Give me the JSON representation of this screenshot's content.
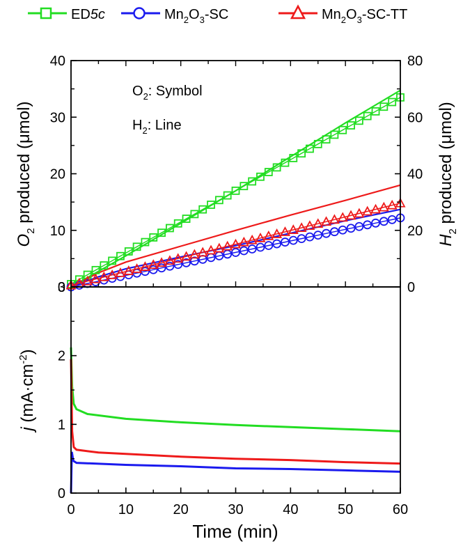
{
  "chart_data": [
    {
      "type": "scatter",
      "panel": "top",
      "legend": {
        "placement": "top",
        "entries": [
          {
            "label": "ED",
            "label_italic": "5c",
            "color": "#22dd22",
            "marker": "square"
          },
          {
            "label": "Mn",
            "sub1": "2",
            "mid": "O",
            "sub2": "3",
            "tail": "-SC",
            "color": "#1a1aee",
            "marker": "circle"
          },
          {
            "label": "Mn",
            "sub1": "2",
            "mid": "O",
            "sub2": "3",
            "tail": "-SC-TT",
            "color": "#ee1a1a",
            "marker": "triangle"
          }
        ]
      },
      "annotations": {
        "o2_main": "O",
        "o2_sub": "2",
        "o2_rest": ": Symbol",
        "h2_main": "H",
        "h2_sub": "2",
        "h2_rest": ": Line"
      },
      "ylabel_left": {
        "italic": "O",
        "sub": "2",
        "rest": " produced (μmol)"
      },
      "ylabel_right": {
        "italic": "H",
        "sub": "2",
        "rest": " produced (μmol)"
      },
      "xlim": [
        0,
        60
      ],
      "ylim_left": [
        0,
        40
      ],
      "ylim_right": [
        0,
        80
      ],
      "yticks_left": [
        "0",
        "10",
        "20",
        "30",
        "40"
      ],
      "yticks_right": [
        "0",
        "20",
        "40",
        "60",
        "80"
      ],
      "series_o2_symbols": [
        {
          "color": "#22dd22",
          "marker": "square",
          "x_start": 0,
          "x_end": 60,
          "x_step": 1.5,
          "y_at_0": 0.5,
          "y_at_60": 33.5,
          "shape": "linear"
        },
        {
          "color": "#1a1aee",
          "marker": "circle",
          "x_start": 0,
          "x_end": 60,
          "x_step": 1.5,
          "y_at_0": 0.0,
          "y_at_60": 12.2,
          "shape": "linear"
        },
        {
          "color": "#ee1a1a",
          "marker": "triangle",
          "x_start": 0,
          "x_end": 60,
          "x_step": 1.5,
          "y_at_0": 0.3,
          "y_at_60": 14.8,
          "shape": "linear"
        }
      ],
      "series_h2_lines": [
        {
          "color": "#22dd22",
          "axis": "right",
          "points": [
            [
              0,
              0
            ],
            [
              10,
              11
            ],
            [
              20,
              22.5
            ],
            [
              30,
              34
            ],
            [
              40,
              46
            ],
            [
              50,
              58
            ],
            [
              60,
              69.5
            ]
          ]
        },
        {
          "color": "#1a1aee",
          "axis": "right",
          "points": [
            [
              0,
              0
            ],
            [
              5,
              3.6
            ],
            [
              10,
              6.4
            ],
            [
              20,
              10.6
            ],
            [
              30,
              14.6
            ],
            [
              40,
              19
            ],
            [
              50,
              23.4
            ],
            [
              60,
              27.4
            ]
          ]
        },
        {
          "color": "#ee1a1a",
          "axis": "right",
          "points": [
            [
              0,
              0
            ],
            [
              5,
              5
            ],
            [
              10,
              8.8
            ],
            [
              20,
              14.4
            ],
            [
              30,
              20
            ],
            [
              40,
              25.4
            ],
            [
              50,
              30.6
            ],
            [
              60,
              36
            ]
          ]
        }
      ]
    },
    {
      "type": "line",
      "panel": "bottom",
      "ylabel": {
        "italic": "j",
        "rest": " (mA·cm",
        "sup": "-2",
        "close": ")"
      },
      "xlabel": "Time (min)",
      "xlim": [
        0,
        60
      ],
      "ylim": [
        0,
        3
      ],
      "xticks": [
        "0",
        "10",
        "20",
        "30",
        "40",
        "50",
        "60"
      ],
      "yticks": [
        "0",
        "1",
        "2",
        "3"
      ],
      "series": [
        {
          "color": "#22dd22",
          "points": [
            [
              0,
              2.12
            ],
            [
              0.2,
              1.55
            ],
            [
              0.5,
              1.3
            ],
            [
              1,
              1.22
            ],
            [
              3,
              1.15
            ],
            [
              10,
              1.08
            ],
            [
              20,
              1.03
            ],
            [
              30,
              0.99
            ],
            [
              40,
              0.96
            ],
            [
              50,
              0.93
            ],
            [
              60,
              0.9
            ]
          ]
        },
        {
          "color": "#ee1a1a",
          "points": [
            [
              0,
              1.95
            ],
            [
              0.2,
              0.9
            ],
            [
              0.5,
              0.67
            ],
            [
              1,
              0.63
            ],
            [
              5,
              0.59
            ],
            [
              10,
              0.57
            ],
            [
              20,
              0.53
            ],
            [
              30,
              0.5
            ],
            [
              40,
              0.48
            ],
            [
              50,
              0.45
            ],
            [
              60,
              0.43
            ]
          ]
        },
        {
          "color": "#1a1aee",
          "points": [
            [
              0,
              0.0
            ],
            [
              0.15,
              0.6
            ],
            [
              0.4,
              0.47
            ],
            [
              1,
              0.44
            ],
            [
              10,
              0.41
            ],
            [
              20,
              0.39
            ],
            [
              30,
              0.36
            ],
            [
              40,
              0.35
            ],
            [
              50,
              0.33
            ],
            [
              60,
              0.31
            ]
          ]
        }
      ]
    }
  ]
}
